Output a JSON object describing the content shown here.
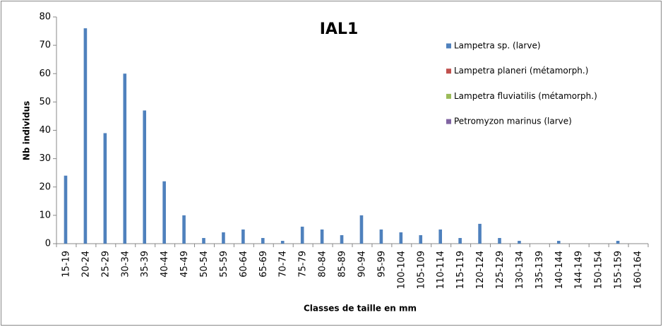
{
  "chart_data": {
    "type": "bar",
    "title": "IAL1",
    "x_label": "Classes de taille en mm",
    "y_label": "Nb individus",
    "categories": [
      "15-19",
      "20-24",
      "25-29",
      "30-34",
      "35-39",
      "40-44",
      "45-49",
      "50-54",
      "55-59",
      "60-64",
      "65-69",
      "70-74",
      "75-79",
      "80-84",
      "85-89",
      "90-94",
      "95-99",
      "100-104",
      "105-109",
      "110-114",
      "115-119",
      "120-124",
      "125-129",
      "130-134",
      "135-139",
      "140-144",
      "144-149",
      "150-154",
      "155-159",
      "160-164"
    ],
    "series": [
      {
        "name": "Lampetra sp. (larve)",
        "color": "#4f81bd",
        "values": [
          24,
          76,
          39,
          60,
          47,
          22,
          10,
          2,
          4,
          5,
          2,
          1,
          6,
          5,
          3,
          10,
          5,
          4,
          3,
          5,
          2,
          7,
          2,
          1,
          0,
          1,
          0,
          0,
          1,
          0
        ]
      },
      {
        "name": "Lampetra planeri (métamorph.)",
        "color": "#c0504d",
        "values": [
          0,
          0,
          0,
          0,
          0,
          0,
          0,
          0,
          0,
          0,
          0,
          0,
          0,
          0,
          0,
          0,
          0,
          0,
          0,
          0,
          0,
          0,
          0,
          0,
          0,
          0,
          0,
          0,
          0,
          0
        ]
      },
      {
        "name": "Lampetra fluviatilis (métamorph.)",
        "color": "#9bbb59",
        "values": [
          0,
          0,
          0,
          0,
          0,
          0,
          0,
          0,
          0,
          0,
          0,
          0,
          0,
          0,
          0,
          0,
          0,
          0,
          0,
          0,
          0,
          0,
          0,
          0,
          0,
          0,
          0,
          0,
          0,
          0
        ]
      },
      {
        "name": "Petromyzon marinus (larve)",
        "color": "#8064a2",
        "values": [
          0,
          0,
          0,
          0,
          0,
          0,
          0,
          0,
          0,
          0,
          0,
          0,
          0,
          0,
          0,
          0,
          0,
          0,
          0,
          0,
          0,
          0,
          0,
          0,
          0,
          0,
          0,
          0,
          0,
          0
        ]
      }
    ],
    "ylim": [
      0,
      80
    ],
    "yticks": [
      0,
      10,
      20,
      30,
      40,
      50,
      60,
      70,
      80
    ],
    "legend": "upper right"
  }
}
